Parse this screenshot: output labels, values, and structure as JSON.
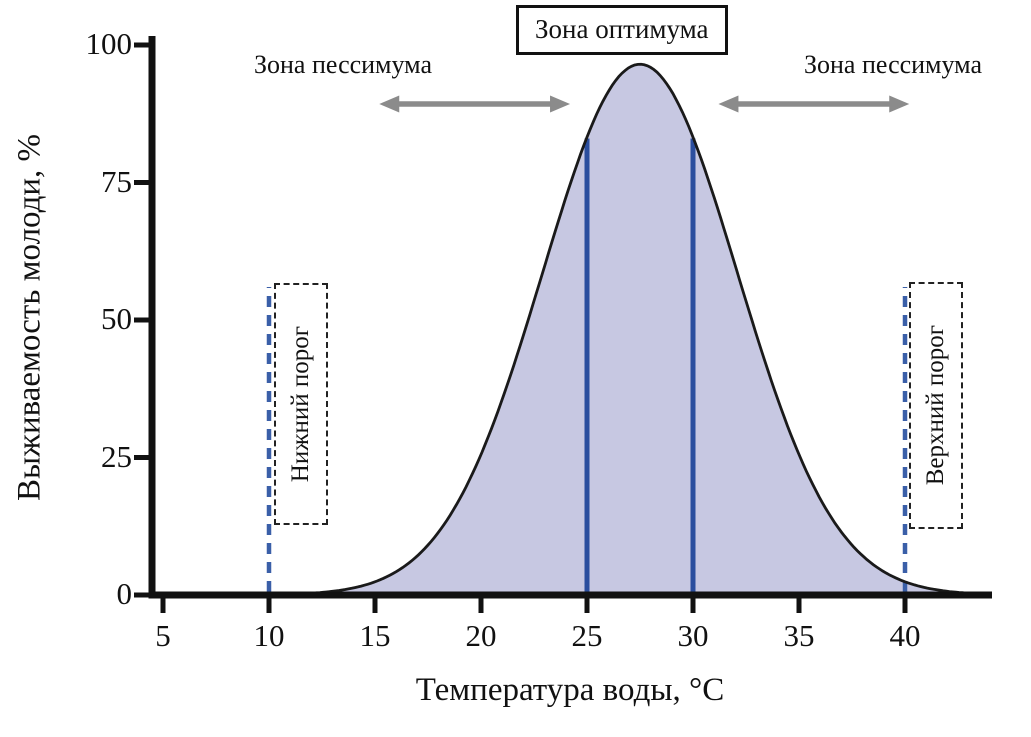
{
  "annotations": {
    "optimum_label": "Зона оптимума",
    "pessimum_left": "Зона пессимума",
    "pessimum_right": "Зона пессимума",
    "lower_threshold": "Нижний порог",
    "upper_threshold": "Верхний порог"
  },
  "chart_data": {
    "type": "area",
    "title": "",
    "xlabel": "Температура воды, °С",
    "ylabel": "Выживаемость молоди, %",
    "x_ticks": [
      5,
      10,
      15,
      20,
      25,
      30,
      35,
      40
    ],
    "y_ticks": [
      0,
      25,
      50,
      75,
      100
    ],
    "xlim": [
      4.3,
      43.8
    ],
    "ylim": [
      0,
      100
    ],
    "curve": {
      "shape": "gaussian",
      "mean": 27.5,
      "sigma": 4.6,
      "peak_survival_pct": 96.5,
      "x_range": [
        7,
        43.5
      ]
    },
    "optimum_zone": {
      "x_start": 25,
      "x_end": 30,
      "marker_top_pct": 83
    },
    "thresholds": {
      "lower_x": 10,
      "upper_x": 40
    },
    "pessimum_zones": [
      {
        "x_start": 15.2,
        "x_end": 24.2
      },
      {
        "x_start": 31.2,
        "x_end": 40.2
      }
    ],
    "colors": {
      "fill": "#c7c8e2",
      "curve": "#1a1a1a",
      "optimum_line": "#2b4e9e",
      "threshold_line": "#3a5fa8",
      "arrow": "#8b8b8b",
      "axis": "#111111"
    }
  }
}
